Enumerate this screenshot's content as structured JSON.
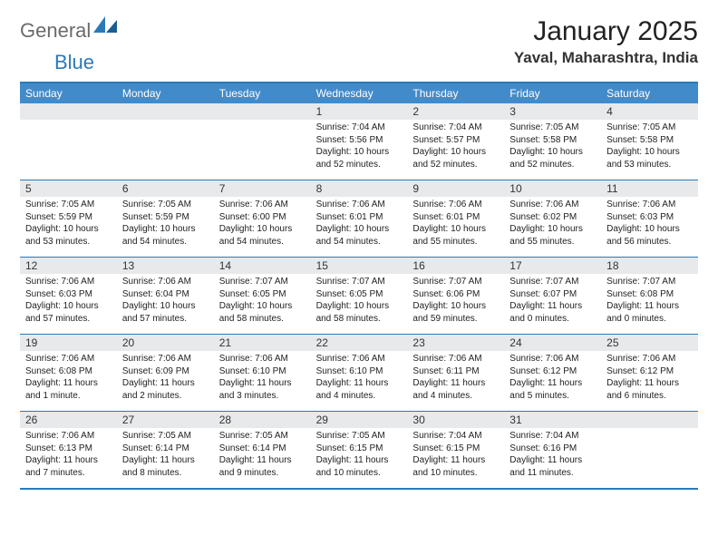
{
  "logo": {
    "text1": "General",
    "text2": "Blue"
  },
  "title": "January 2025",
  "location": "Yaval, Maharashtra, India",
  "colors": {
    "header_bg": "#428bca",
    "header_text": "#ffffff",
    "border": "#2b7ab8",
    "daynum_bg": "#e8e9ea",
    "logo_gray": "#6b6b6b",
    "logo_blue": "#2b7ab8",
    "text": "#222222",
    "page_bg": "#ffffff"
  },
  "day_headers": [
    "Sunday",
    "Monday",
    "Tuesday",
    "Wednesday",
    "Thursday",
    "Friday",
    "Saturday"
  ],
  "weeks": [
    [
      null,
      null,
      null,
      {
        "n": "1",
        "sr": "7:04 AM",
        "ss": "5:56 PM",
        "dh": "10",
        "dm": "52",
        "p": "minutes."
      },
      {
        "n": "2",
        "sr": "7:04 AM",
        "ss": "5:57 PM",
        "dh": "10",
        "dm": "52",
        "p": "minutes."
      },
      {
        "n": "3",
        "sr": "7:05 AM",
        "ss": "5:58 PM",
        "dh": "10",
        "dm": "52",
        "p": "minutes."
      },
      {
        "n": "4",
        "sr": "7:05 AM",
        "ss": "5:58 PM",
        "dh": "10",
        "dm": "53",
        "p": "minutes."
      }
    ],
    [
      {
        "n": "5",
        "sr": "7:05 AM",
        "ss": "5:59 PM",
        "dh": "10",
        "dm": "53",
        "p": "minutes."
      },
      {
        "n": "6",
        "sr": "7:05 AM",
        "ss": "5:59 PM",
        "dh": "10",
        "dm": "54",
        "p": "minutes."
      },
      {
        "n": "7",
        "sr": "7:06 AM",
        "ss": "6:00 PM",
        "dh": "10",
        "dm": "54",
        "p": "minutes."
      },
      {
        "n": "8",
        "sr": "7:06 AM",
        "ss": "6:01 PM",
        "dh": "10",
        "dm": "54",
        "p": "minutes."
      },
      {
        "n": "9",
        "sr": "7:06 AM",
        "ss": "6:01 PM",
        "dh": "10",
        "dm": "55",
        "p": "minutes."
      },
      {
        "n": "10",
        "sr": "7:06 AM",
        "ss": "6:02 PM",
        "dh": "10",
        "dm": "55",
        "p": "minutes."
      },
      {
        "n": "11",
        "sr": "7:06 AM",
        "ss": "6:03 PM",
        "dh": "10",
        "dm": "56",
        "p": "minutes."
      }
    ],
    [
      {
        "n": "12",
        "sr": "7:06 AM",
        "ss": "6:03 PM",
        "dh": "10",
        "dm": "57",
        "p": "minutes."
      },
      {
        "n": "13",
        "sr": "7:06 AM",
        "ss": "6:04 PM",
        "dh": "10",
        "dm": "57",
        "p": "minutes."
      },
      {
        "n": "14",
        "sr": "7:07 AM",
        "ss": "6:05 PM",
        "dh": "10",
        "dm": "58",
        "p": "minutes."
      },
      {
        "n": "15",
        "sr": "7:07 AM",
        "ss": "6:05 PM",
        "dh": "10",
        "dm": "58",
        "p": "minutes."
      },
      {
        "n": "16",
        "sr": "7:07 AM",
        "ss": "6:06 PM",
        "dh": "10",
        "dm": "59",
        "p": "minutes."
      },
      {
        "n": "17",
        "sr": "7:07 AM",
        "ss": "6:07 PM",
        "dh": "11",
        "dm": "0",
        "p": "minutes."
      },
      {
        "n": "18",
        "sr": "7:07 AM",
        "ss": "6:08 PM",
        "dh": "11",
        "dm": "0",
        "p": "minutes."
      }
    ],
    [
      {
        "n": "19",
        "sr": "7:06 AM",
        "ss": "6:08 PM",
        "dh": "11",
        "dm": "1",
        "p": "minute."
      },
      {
        "n": "20",
        "sr": "7:06 AM",
        "ss": "6:09 PM",
        "dh": "11",
        "dm": "2",
        "p": "minutes."
      },
      {
        "n": "21",
        "sr": "7:06 AM",
        "ss": "6:10 PM",
        "dh": "11",
        "dm": "3",
        "p": "minutes."
      },
      {
        "n": "22",
        "sr": "7:06 AM",
        "ss": "6:10 PM",
        "dh": "11",
        "dm": "4",
        "p": "minutes."
      },
      {
        "n": "23",
        "sr": "7:06 AM",
        "ss": "6:11 PM",
        "dh": "11",
        "dm": "4",
        "p": "minutes."
      },
      {
        "n": "24",
        "sr": "7:06 AM",
        "ss": "6:12 PM",
        "dh": "11",
        "dm": "5",
        "p": "minutes."
      },
      {
        "n": "25",
        "sr": "7:06 AM",
        "ss": "6:12 PM",
        "dh": "11",
        "dm": "6",
        "p": "minutes."
      }
    ],
    [
      {
        "n": "26",
        "sr": "7:06 AM",
        "ss": "6:13 PM",
        "dh": "11",
        "dm": "7",
        "p": "minutes."
      },
      {
        "n": "27",
        "sr": "7:05 AM",
        "ss": "6:14 PM",
        "dh": "11",
        "dm": "8",
        "p": "minutes."
      },
      {
        "n": "28",
        "sr": "7:05 AM",
        "ss": "6:14 PM",
        "dh": "11",
        "dm": "9",
        "p": "minutes."
      },
      {
        "n": "29",
        "sr": "7:05 AM",
        "ss": "6:15 PM",
        "dh": "11",
        "dm": "10",
        "p": "minutes."
      },
      {
        "n": "30",
        "sr": "7:04 AM",
        "ss": "6:15 PM",
        "dh": "11",
        "dm": "10",
        "p": "minutes."
      },
      {
        "n": "31",
        "sr": "7:04 AM",
        "ss": "6:16 PM",
        "dh": "11",
        "dm": "11",
        "p": "minutes."
      },
      null
    ]
  ],
  "labels": {
    "sunrise": "Sunrise:",
    "sunset": "Sunset:",
    "daylight": "Daylight:",
    "hours": "hours",
    "and": "and"
  }
}
